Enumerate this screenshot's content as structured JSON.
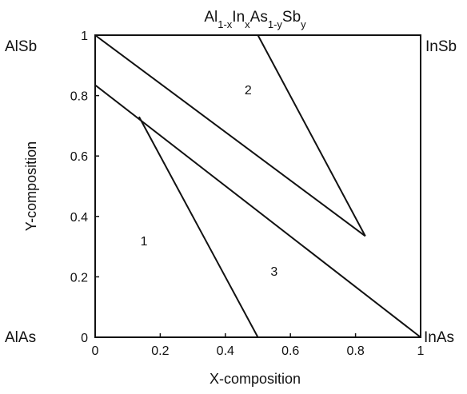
{
  "chart_data": {
    "type": "line",
    "title": {
      "base": "Al",
      "parts": [
        {
          "text": "1-x",
          "shift": "sub"
        },
        {
          "text": "In",
          "shift": "base"
        },
        {
          "text": "x",
          "shift": "sub"
        },
        {
          "text": "As",
          "shift": "base"
        },
        {
          "text": "1-y",
          "shift": "sub"
        },
        {
          "text": "Sb",
          "shift": "base"
        },
        {
          "text": "y",
          "shift": "sub"
        }
      ]
    },
    "xlabel": "X-composition",
    "ylabel": "Y-composition",
    "xlim": [
      0,
      1
    ],
    "ylim": [
      0,
      1
    ],
    "x_ticks": [
      "0",
      "0.2",
      "0.4",
      "0.6",
      "0.8",
      "1"
    ],
    "x_tick_values": [
      0,
      0.2,
      0.4,
      0.6,
      0.8,
      1
    ],
    "y_ticks": [
      "0",
      "0.2",
      "0.4",
      "0.6",
      "0.8",
      "1"
    ],
    "y_tick_values": [
      0,
      0.2,
      0.4,
      0.6,
      0.8,
      1
    ],
    "grid": false,
    "corner_labels": [
      {
        "text": "AlSb",
        "corner": "top-left"
      },
      {
        "text": "InSb",
        "corner": "top-right"
      },
      {
        "text": "AlAs",
        "corner": "bottom-left"
      },
      {
        "text": "InAs",
        "corner": "bottom-right"
      }
    ],
    "series": [
      {
        "points": [
          [
            0,
            1
          ],
          [
            0.83,
            0.335
          ]
        ]
      },
      {
        "points": [
          [
            0.5,
            1
          ],
          [
            0.83,
            0.335
          ]
        ]
      },
      {
        "points": [
          [
            0,
            0.835
          ],
          [
            1,
            0
          ]
        ]
      },
      {
        "points": [
          [
            0.135,
            0.73
          ],
          [
            0.5,
            0
          ]
        ]
      }
    ],
    "region_labels": [
      {
        "text": "1",
        "x": 0.15,
        "y": 0.32
      },
      {
        "text": "2",
        "x": 0.47,
        "y": 0.82
      },
      {
        "text": "3",
        "x": 0.55,
        "y": 0.22
      }
    ],
    "line_color": "#111111"
  }
}
